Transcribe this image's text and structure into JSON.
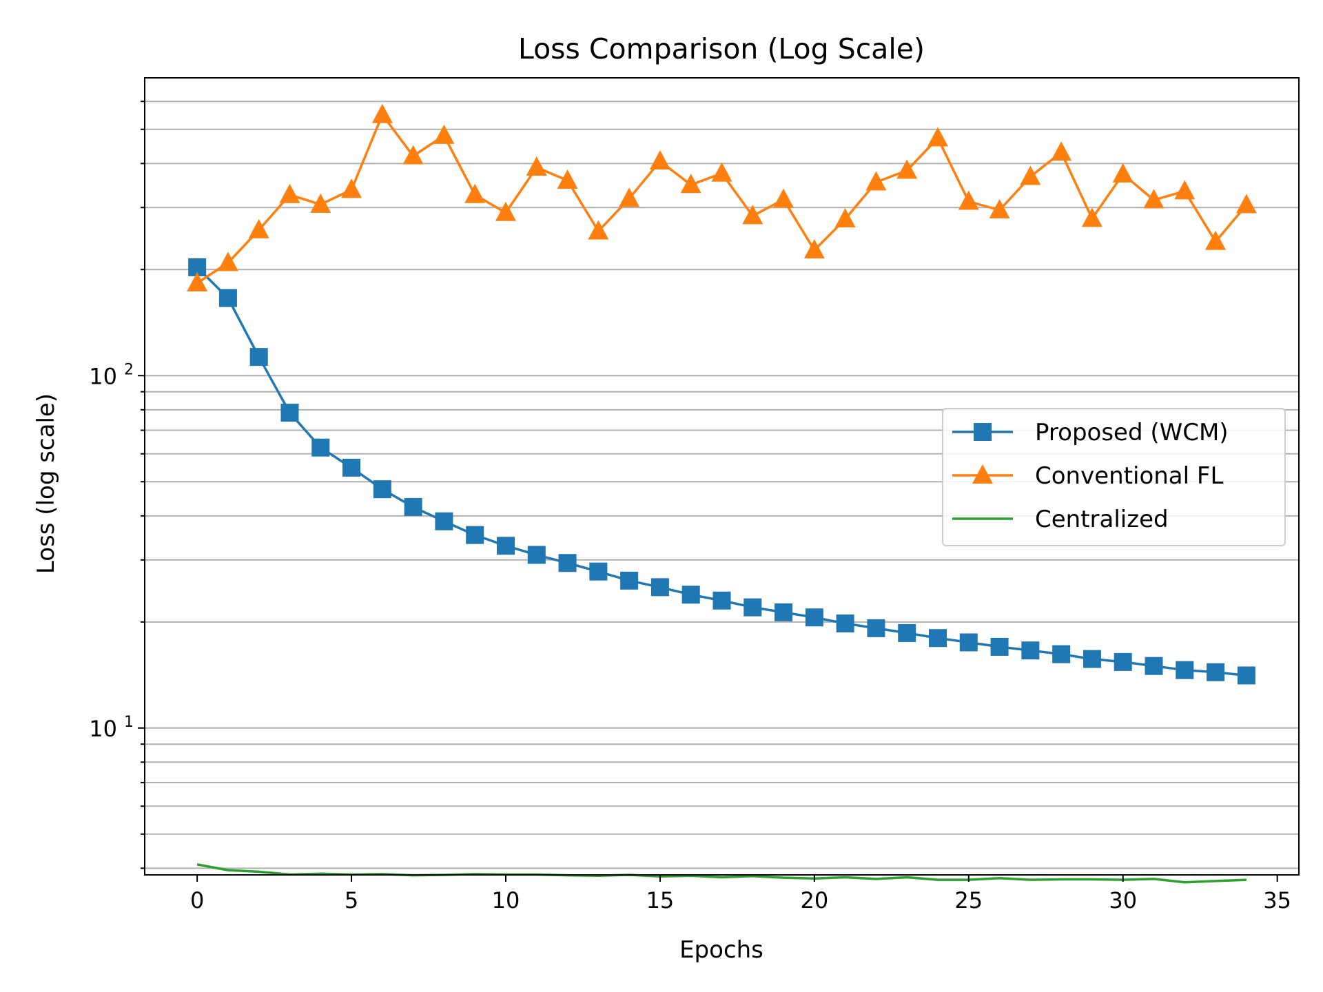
{
  "chart_data": {
    "type": "line",
    "title": "Loss Comparison (Log Scale)",
    "xlabel": "Epochs",
    "ylabel": "Loss (log scale)",
    "xlim": [
      -1.7,
      35.7
    ],
    "ylim": [
      3.83,
      700
    ],
    "yscale": "log",
    "x_ticks": [
      0,
      5,
      10,
      15,
      20,
      25,
      30,
      35
    ],
    "y_major_ticks": [
      {
        "value": 10,
        "base": "10",
        "exp": "1"
      },
      {
        "value": 100,
        "base": "10",
        "exp": "2"
      }
    ],
    "y_minor_ticks": [
      4,
      5,
      6,
      7,
      8,
      9,
      20,
      30,
      40,
      50,
      60,
      70,
      80,
      90,
      200,
      300,
      400,
      500,
      600
    ],
    "grid": "y-major-and-minor",
    "legend_placement": "center-right",
    "x": [
      0,
      1,
      2,
      3,
      4,
      5,
      6,
      7,
      8,
      9,
      10,
      11,
      12,
      13,
      14,
      15,
      16,
      17,
      18,
      19,
      20,
      21,
      22,
      23,
      24,
      25,
      26,
      27,
      28,
      29,
      30,
      31,
      32,
      33,
      34
    ],
    "series": [
      {
        "name": "Proposed (WCM)",
        "color": "#1f77b4",
        "marker": "square",
        "values": [
          203,
          166,
          113,
          78.5,
          62.5,
          54.8,
          47.6,
          42.4,
          38.6,
          35.3,
          32.9,
          31.0,
          29.4,
          27.8,
          26.2,
          25.1,
          23.9,
          23.0,
          22.0,
          21.3,
          20.6,
          19.8,
          19.2,
          18.6,
          18.0,
          17.5,
          17.0,
          16.6,
          16.2,
          15.7,
          15.4,
          15.0,
          14.6,
          14.4,
          14.1
        ]
      },
      {
        "name": "Conventional FL",
        "color": "#ff7f0e",
        "marker": "triangle",
        "values": [
          183,
          209,
          259,
          326,
          306,
          337,
          550,
          420,
          480,
          326,
          290,
          390,
          358,
          257,
          318,
          406,
          348,
          375,
          284,
          316,
          227,
          278,
          354,
          382,
          472,
          312,
          295,
          367,
          430,
          279,
          373,
          315,
          334,
          240,
          305
        ]
      },
      {
        "name": "Centralized",
        "color": "#2ca02c",
        "marker": "none",
        "values": [
          4.1,
          3.95,
          3.91,
          3.84,
          3.86,
          3.84,
          3.85,
          3.82,
          3.83,
          3.85,
          3.84,
          3.84,
          3.82,
          3.81,
          3.83,
          3.79,
          3.81,
          3.77,
          3.8,
          3.76,
          3.74,
          3.77,
          3.73,
          3.77,
          3.71,
          3.71,
          3.75,
          3.71,
          3.72,
          3.72,
          3.71,
          3.73,
          3.65,
          3.68,
          3.71
        ]
      }
    ]
  }
}
